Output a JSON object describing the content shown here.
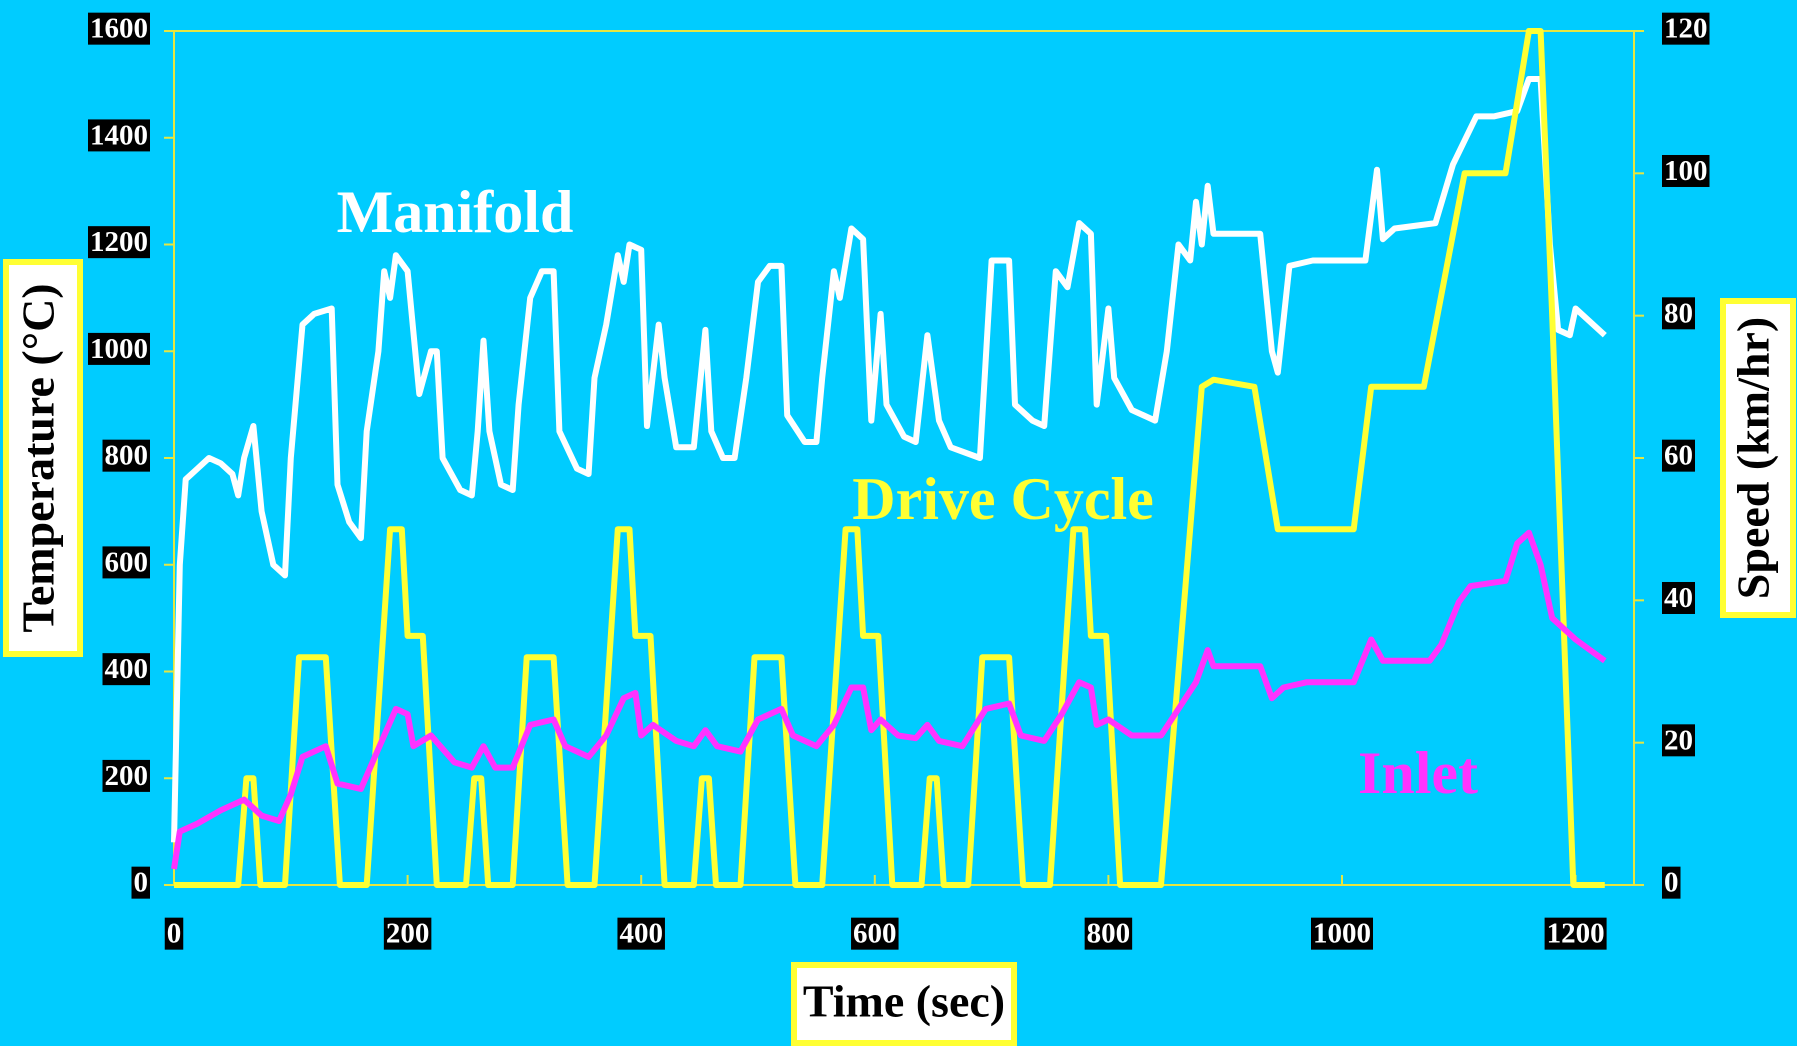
{
  "chart_data": {
    "type": "line",
    "xlabel": "Time (sec)",
    "ylabel": "Temperature (°C)",
    "y2label": "Speed (km/hr)",
    "xlim": [
      0,
      1250
    ],
    "xticks": [
      0,
      200,
      400,
      600,
      800,
      1000,
      1200
    ],
    "ylim": [
      0,
      1600
    ],
    "yticks": [
      0,
      200,
      400,
      600,
      800,
      1000,
      1200,
      1400,
      1600
    ],
    "y2lim": [
      0,
      120
    ],
    "y2ticks": [
      0,
      20,
      40,
      60,
      80,
      100,
      120
    ],
    "grid": false,
    "series": [
      {
        "name": "Manifold",
        "color": "#ffffff",
        "x": [
          0,
          5,
          10,
          20,
          30,
          40,
          50,
          55,
          60,
          68,
          75,
          85,
          95,
          100,
          110,
          120,
          135,
          140,
          150,
          160,
          165,
          175,
          180,
          185,
          190,
          200,
          210,
          220,
          225,
          230,
          245,
          255,
          260,
          265,
          270,
          280,
          290,
          295,
          305,
          315,
          325,
          330,
          345,
          355,
          360,
          370,
          380,
          385,
          390,
          400,
          405,
          415,
          420,
          430,
          445,
          455,
          460,
          470,
          480,
          490,
          500,
          510,
          520,
          525,
          540,
          550,
          555,
          565,
          570,
          580,
          590,
          597,
          605,
          610,
          625,
          635,
          645,
          655,
          665,
          690,
          700,
          715,
          720,
          735,
          745,
          755,
          765,
          775,
          785,
          790,
          800,
          805,
          820,
          840,
          850,
          860,
          870,
          875,
          880,
          885,
          890,
          930,
          940,
          945,
          955,
          975,
          1020,
          1030,
          1035,
          1045,
          1080,
          1095,
          1115,
          1130,
          1150,
          1160,
          1170,
          1178,
          1185,
          1195,
          1200,
          1225
        ],
        "values": [
          80,
          600,
          760,
          780,
          800,
          790,
          770,
          730,
          800,
          860,
          700,
          600,
          580,
          800,
          1050,
          1070,
          1080,
          750,
          680,
          650,
          850,
          1000,
          1150,
          1100,
          1180,
          1150,
          920,
          1000,
          1000,
          800,
          740,
          730,
          850,
          1020,
          850,
          750,
          740,
          900,
          1100,
          1150,
          1150,
          850,
          780,
          770,
          950,
          1050,
          1180,
          1130,
          1200,
          1190,
          860,
          1050,
          950,
          820,
          820,
          1040,
          850,
          800,
          800,
          950,
          1130,
          1160,
          1160,
          880,
          830,
          830,
          950,
          1150,
          1100,
          1230,
          1210,
          870,
          1070,
          900,
          840,
          830,
          1030,
          870,
          820,
          800,
          1170,
          1170,
          900,
          870,
          860,
          1150,
          1120,
          1240,
          1220,
          900,
          1080,
          950,
          890,
          870,
          1000,
          1200,
          1170,
          1280,
          1200,
          1310,
          1220,
          1220,
          1000,
          960,
          1160,
          1170,
          1170,
          1340,
          1210,
          1230,
          1240,
          1350,
          1440,
          1440,
          1450,
          1510,
          1510,
          1200,
          1040,
          1030,
          1080,
          1030
        ]
      },
      {
        "name": "Drive Cycle",
        "color": "#ffff33",
        "axis": "y2",
        "x": [
          0,
          55,
          62,
          68,
          74,
          95,
          107,
          130,
          142,
          165,
          185,
          195,
          200,
          213,
          225,
          250,
          257,
          263,
          269,
          290,
          302,
          325,
          337,
          360,
          380,
          390,
          395,
          408,
          420,
          445,
          452,
          458,
          464,
          485,
          497,
          520,
          532,
          555,
          575,
          585,
          590,
          603,
          615,
          640,
          647,
          653,
          659,
          680,
          692,
          715,
          727,
          750,
          770,
          780,
          785,
          798,
          810,
          845,
          880,
          890,
          925,
          945,
          1010,
          1025,
          1070,
          1105,
          1140,
          1160,
          1170,
          1180,
          1198,
          1225
        ],
        "values": [
          0,
          0,
          15,
          15,
          0,
          0,
          32,
          32,
          0,
          0,
          50,
          50,
          35,
          35,
          0,
          0,
          15,
          15,
          0,
          0,
          32,
          32,
          0,
          0,
          50,
          50,
          35,
          35,
          0,
          0,
          15,
          15,
          0,
          0,
          32,
          32,
          0,
          0,
          50,
          50,
          35,
          35,
          0,
          0,
          15,
          15,
          0,
          0,
          32,
          32,
          0,
          0,
          50,
          50,
          35,
          35,
          0,
          0,
          70,
          71,
          70,
          50,
          50,
          70,
          70,
          100,
          100,
          120,
          120,
          80,
          0,
          0
        ]
      },
      {
        "name": "Inlet",
        "color": "#ff33ff",
        "x": [
          0,
          5,
          20,
          40,
          60,
          75,
          90,
          100,
          110,
          130,
          140,
          160,
          180,
          190,
          200,
          205,
          220,
          240,
          255,
          265,
          275,
          290,
          305,
          325,
          335,
          355,
          370,
          385,
          395,
          400,
          410,
          430,
          445,
          455,
          465,
          485,
          500,
          520,
          530,
          550,
          565,
          580,
          590,
          597,
          605,
          620,
          635,
          645,
          655,
          675,
          695,
          715,
          725,
          745,
          760,
          775,
          785,
          790,
          800,
          820,
          845,
          860,
          875,
          885,
          890,
          930,
          940,
          950,
          970,
          1010,
          1025,
          1035,
          1075,
          1085,
          1100,
          1110,
          1140,
          1150,
          1160,
          1170,
          1180,
          1200,
          1225
        ],
        "values": [
          30,
          100,
          115,
          140,
          160,
          130,
          120,
          170,
          240,
          260,
          190,
          180,
          280,
          330,
          320,
          260,
          280,
          230,
          220,
          260,
          220,
          220,
          300,
          310,
          260,
          240,
          280,
          350,
          360,
          280,
          300,
          270,
          260,
          290,
          260,
          250,
          310,
          330,
          280,
          260,
          300,
          370,
          370,
          290,
          310,
          280,
          275,
          300,
          270,
          260,
          330,
          340,
          280,
          270,
          320,
          380,
          370,
          300,
          310,
          280,
          280,
          330,
          380,
          440,
          410,
          410,
          350,
          370,
          380,
          380,
          460,
          420,
          420,
          450,
          530,
          560,
          570,
          640,
          660,
          600,
          500,
          460,
          420
        ]
      }
    ]
  }
}
